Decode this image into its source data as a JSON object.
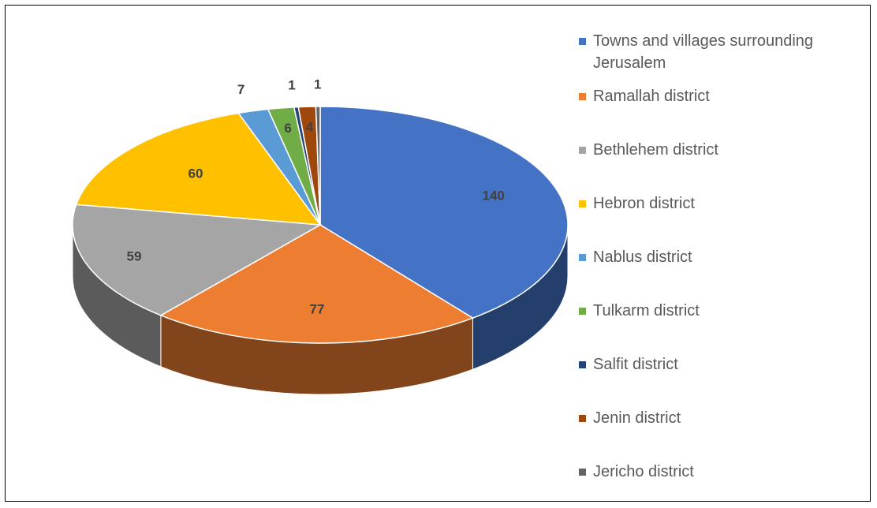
{
  "chart_data": {
    "type": "pie",
    "categories": [
      "Towns and villages surrounding Jerusalem",
      "Ramallah district",
      "Bethlehem district",
      "Hebron district",
      "Nablus district",
      "Tulkarm district",
      "Salfit district",
      "Jenin district",
      "Jericho district"
    ],
    "values": [
      140,
      77,
      59,
      60,
      7,
      6,
      1,
      4,
      1
    ],
    "colors": [
      "#4472c4",
      "#ed7d31",
      "#a5a5a5",
      "#ffc000",
      "#5b9bd5",
      "#70ad47",
      "#264478",
      "#9e480e",
      "#636363"
    ],
    "legend": "right"
  }
}
